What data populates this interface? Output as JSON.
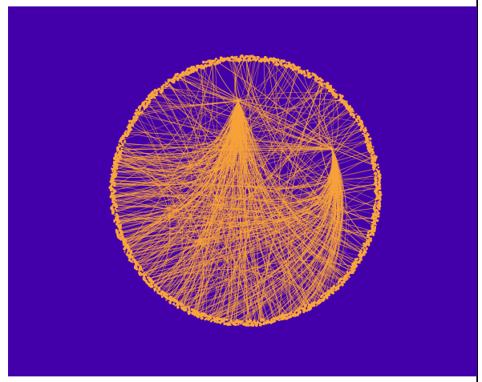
{
  "colors": {
    "page_background": "#ffffff",
    "canvas_background": "#4300aa",
    "edge_color": "#f7a23a",
    "node_color": "#f8a53c",
    "frame_border": "#000000"
  },
  "graph": {
    "layout": "circular",
    "edge_style": "bundled-curves",
    "node_count": 1600,
    "edge_count": 520,
    "hub_count": 2
  }
}
